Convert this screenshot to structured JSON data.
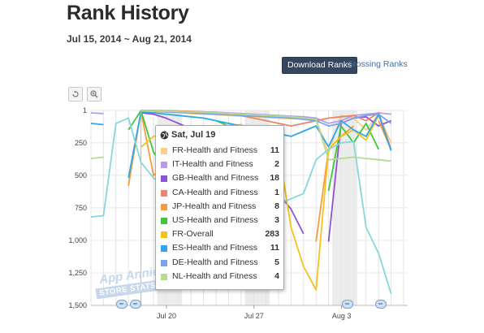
{
  "page": {
    "title": "Rank History",
    "date_range": "Jul 15, 2014 ~ Aug 21, 2014",
    "download_button": "Download Ranks",
    "grossing_link": "Grossing Ranks",
    "reset_icon": "reset-zoom-icon",
    "zoom_icon": "zoom-in-icon"
  },
  "watermark": {
    "line1": "App Annie",
    "line2": "STORE STATS"
  },
  "tooltip": {
    "date": "Sat, Jul 19",
    "icon": "globe-icon",
    "rows": [
      {
        "name": "FR-Health and Fitness",
        "value": "11",
        "color": "#f8d08a"
      },
      {
        "name": "IT-Health and Fitness",
        "value": "2",
        "color": "#b89be8"
      },
      {
        "name": "GB-Health and Fitness",
        "value": "18",
        "color": "#8f52d4"
      },
      {
        "name": "CA-Health and Fitness",
        "value": "1",
        "color": "#e8876c"
      },
      {
        "name": "JP-Health and Fitness",
        "value": "8",
        "color": "#f59b42"
      },
      {
        "name": "US-Health and Fitness",
        "value": "3",
        "color": "#3ec83e"
      },
      {
        "name": "FR-Overall",
        "value": "283",
        "color": "#f5c21b"
      },
      {
        "name": "ES-Health and Fitness",
        "value": "11",
        "color": "#2fa7e8"
      },
      {
        "name": "DE-Health and Fitness",
        "value": "5",
        "color": "#7aa3e8"
      },
      {
        "name": "NL-Health and Fitness",
        "value": "4",
        "color": "#b4dc8c"
      }
    ]
  },
  "chart_data": {
    "type": "line",
    "title": "",
    "xlabel": "",
    "ylabel": "",
    "y_inverted": true,
    "ylim": [
      1,
      1500
    ],
    "yticks": [
      1,
      250,
      500,
      750,
      1000,
      1250,
      1500
    ],
    "ytick_labels": [
      "1",
      "250",
      "500",
      "750",
      "1,000",
      "1,250",
      "1,500"
    ],
    "x_start": "Jul 15",
    "xlim": [
      0,
      37
    ],
    "xticks": [
      {
        "day": 5,
        "label": "Jul 20"
      },
      {
        "day": 12,
        "label": "Jul 27"
      },
      {
        "day": 19,
        "label": "Aug 3"
      }
    ],
    "weekend_bands": [
      [
        4,
        6
      ],
      [
        11,
        13
      ],
      [
        18,
        20
      ]
    ],
    "hover_day": 4,
    "series": [
      {
        "name": "FR-Health and Fitness",
        "color": "#f8d08a",
        "x": [
          0,
          1,
          2,
          3,
          4,
          5,
          6,
          7,
          8,
          9,
          10,
          11,
          12,
          13,
          14,
          15,
          16,
          17,
          18,
          19,
          20,
          21,
          22,
          23,
          24
        ],
        "y": [
          null,
          null,
          null,
          null,
          11,
          12,
          15,
          20,
          25,
          30,
          35,
          40,
          45,
          50,
          55,
          60,
          65,
          60,
          70,
          330,
          40,
          60,
          150,
          30,
          250
        ]
      },
      {
        "name": "IT-Health and Fitness",
        "color": "#b89be8",
        "x": [
          0,
          1,
          2,
          3,
          4,
          5,
          6,
          7,
          8,
          9,
          10,
          11,
          12,
          13,
          14,
          15,
          16,
          17,
          18,
          19,
          20,
          21,
          22,
          23,
          24
        ],
        "y": [
          20,
          25,
          null,
          null,
          2,
          3,
          5,
          8,
          10,
          12,
          15,
          20,
          25,
          30,
          35,
          40,
          45,
          50,
          60,
          100,
          80,
          40,
          30,
          20,
          30
        ]
      },
      {
        "name": "GB-Health and Fitness",
        "color": "#8f52d4",
        "x": [
          0,
          1,
          2,
          3,
          4,
          5,
          6,
          7,
          8,
          9,
          10,
          11,
          12,
          13,
          14,
          15,
          16,
          17,
          18,
          19,
          20,
          21,
          22,
          23,
          24
        ],
        "y": [
          720,
          null,
          null,
          null,
          18,
          30,
          60,
          100,
          140,
          200,
          250,
          300,
          380,
          440,
          520,
          640,
          760,
          950,
          null,
          1010,
          100,
          60,
          50,
          120,
          80
        ]
      },
      {
        "name": "CA-Health and Fitness",
        "color": "#e8876c",
        "x": [
          0,
          1,
          2,
          3,
          4,
          5,
          6,
          7,
          8,
          9,
          10,
          11,
          12,
          13,
          14,
          15,
          16,
          17,
          18,
          19,
          20,
          21,
          22,
          23,
          24
        ],
        "y": [
          null,
          null,
          null,
          null,
          1,
          2,
          3,
          5,
          8,
          12,
          20,
          30,
          40,
          60,
          80,
          100,
          120,
          100,
          80,
          60,
          50,
          40,
          80,
          20,
          300
        ]
      },
      {
        "name": "JP-Health and Fitness",
        "color": "#f59b42",
        "x": [
          0,
          1,
          2,
          3,
          4,
          5,
          6,
          7,
          8,
          9,
          10,
          11,
          12,
          13,
          14,
          15,
          16,
          17,
          18,
          19,
          20,
          21,
          22,
          23,
          24
        ],
        "y": [
          null,
          null,
          null,
          580,
          8,
          500,
          420,
          350,
          null,
          1200,
          null,
          1330,
          null,
          1400,
          null,
          null,
          null,
          null,
          1010,
          300,
          200,
          120,
          null,
          80,
          300
        ]
      },
      {
        "name": "US-Health and Fitness",
        "color": "#3ec83e",
        "x": [
          0,
          1,
          2,
          3,
          4,
          5,
          6,
          7,
          8,
          9,
          10,
          11,
          12,
          13,
          14,
          15,
          16,
          17,
          18,
          19,
          20,
          21,
          22,
          23,
          24
        ],
        "y": [
          null,
          null,
          null,
          150,
          3,
          320,
          480,
          null,
          1420,
          null,
          80,
          120,
          170,
          240,
          300,
          null,
          null,
          null,
          null,
          620,
          120,
          250,
          100,
          300,
          null
        ]
      },
      {
        "name": "FR-Overall",
        "color": "#f5c21b",
        "x": [
          0,
          1,
          2,
          3,
          4,
          5,
          6,
          7,
          8,
          9,
          10,
          11,
          12,
          13,
          14,
          15,
          16,
          17,
          18,
          19,
          20,
          21,
          22,
          23,
          24
        ],
        "y": [
          null,
          null,
          null,
          null,
          283,
          200,
          180,
          160,
          140,
          130,
          120,
          115,
          110,
          150,
          200,
          300,
          900,
          1200,
          1380,
          300,
          200,
          150,
          230,
          40,
          null
        ]
      },
      {
        "name": "ES-Health and Fitness",
        "color": "#2fa7e8",
        "x": [
          0,
          1,
          2,
          3,
          4,
          5,
          6,
          7,
          8,
          9,
          10,
          11,
          12,
          13,
          14,
          15,
          16,
          17,
          18,
          19,
          20,
          21,
          22,
          23,
          24
        ],
        "y": [
          100,
          110,
          null,
          520,
          11,
          20,
          30,
          40,
          50,
          60,
          80,
          100,
          120,
          140,
          160,
          180,
          200,
          160,
          120,
          280,
          80,
          150,
          200,
          30,
          310
        ]
      },
      {
        "name": "DE-Health and Fitness",
        "color": "#7aa3e8",
        "x": [
          0,
          1,
          2,
          3,
          4,
          5,
          6,
          7,
          8,
          9,
          10,
          11,
          12,
          13,
          14,
          15,
          16,
          17,
          18,
          19,
          20,
          21,
          22,
          23,
          24
        ],
        "y": [
          null,
          null,
          null,
          null,
          5,
          8,
          12,
          15,
          20,
          25,
          30,
          35,
          40,
          45,
          50,
          55,
          60,
          70,
          80,
          120,
          100,
          60,
          40,
          30,
          100
        ]
      },
      {
        "name": "NL-Health and Fitness",
        "color": "#b4dc8c",
        "x": [
          0,
          1,
          2,
          3,
          4,
          5,
          6,
          7,
          8,
          9,
          10,
          11,
          12,
          13,
          14,
          15,
          16,
          17,
          18,
          19,
          20,
          21,
          22,
          23,
          24
        ],
        "y": [
          370,
          360,
          null,
          null,
          4,
          6,
          8,
          10,
          12,
          15,
          20,
          25,
          30,
          35,
          40,
          45,
          50,
          60,
          70,
          380,
          370,
          360,
          370,
          380,
          390
        ]
      },
      {
        "name": "",
        "color": "#88d6dc",
        "x": [
          0,
          1,
          2,
          3,
          4,
          5,
          6,
          7,
          8,
          9,
          10,
          11,
          12,
          13,
          14,
          15,
          16,
          17,
          18,
          19,
          20,
          21,
          22,
          23,
          24
        ],
        "y": [
          820,
          810,
          100,
          60,
          400,
          520,
          600,
          650,
          680,
          700,
          720,
          740,
          760,
          780,
          800,
          720,
          680,
          640,
          380,
          300,
          250,
          240,
          900,
          1100,
          1410
        ]
      }
    ]
  }
}
